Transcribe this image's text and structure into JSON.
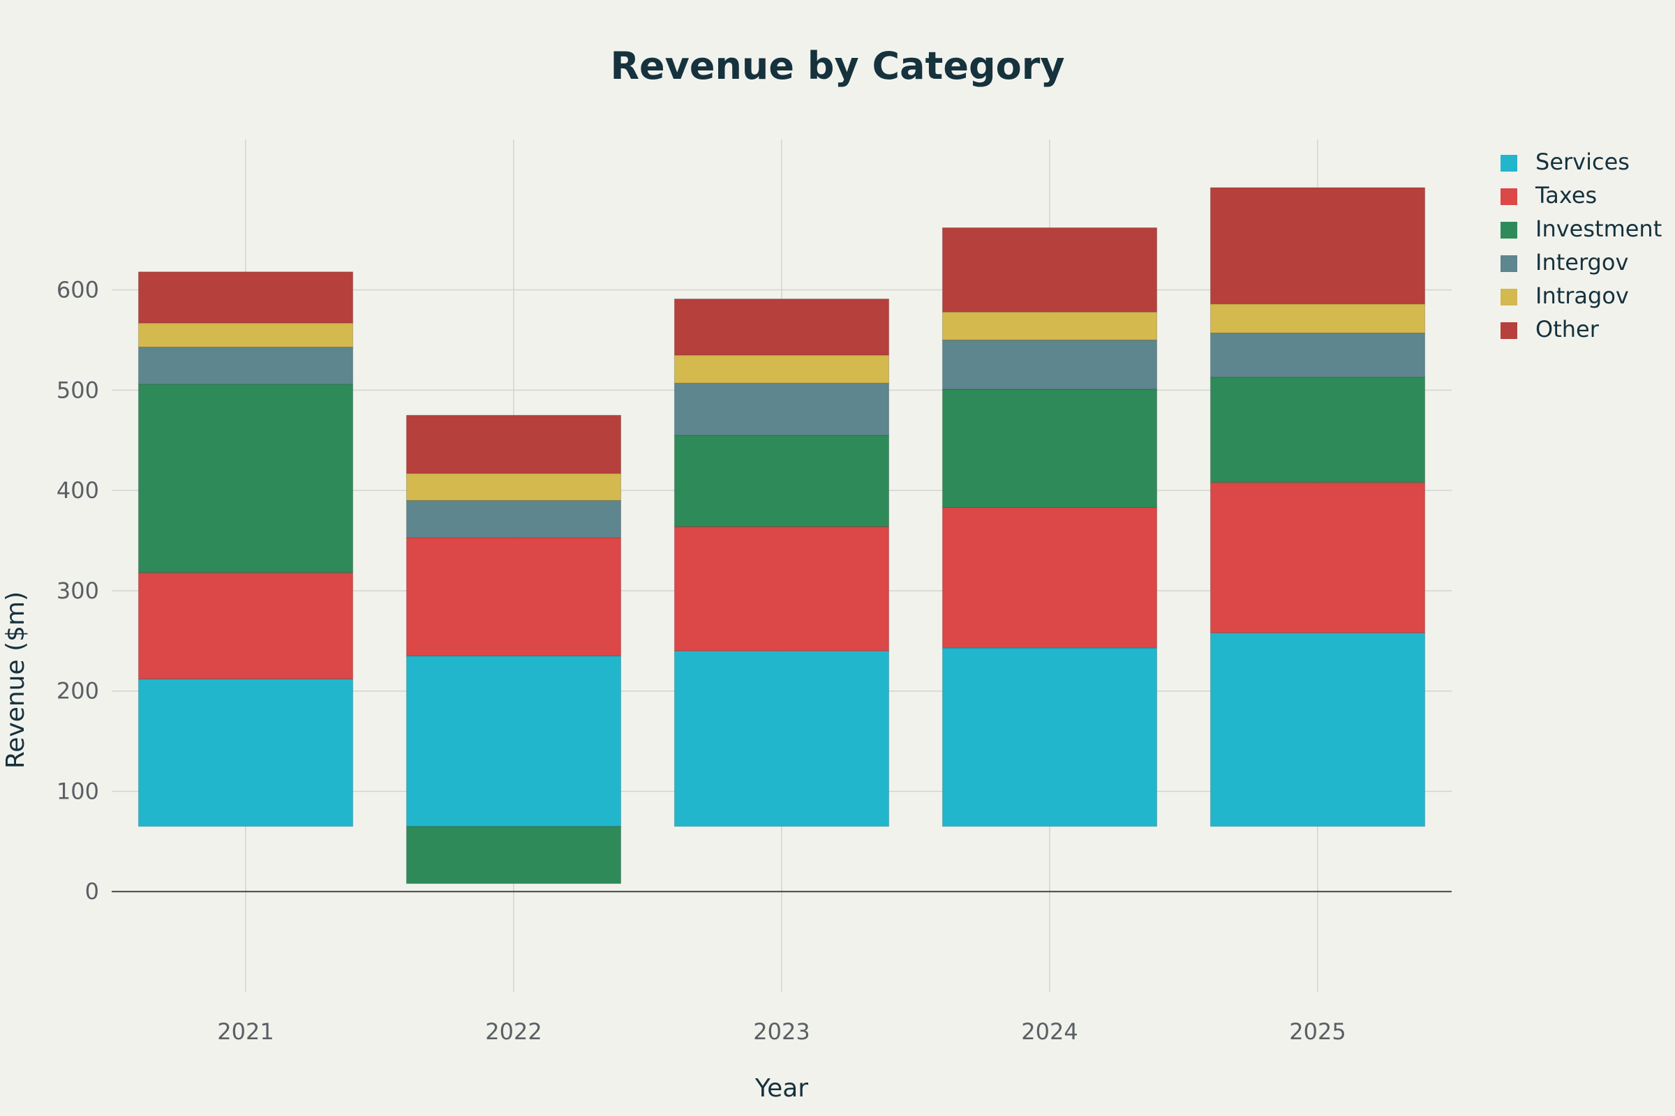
{
  "chart_data": {
    "type": "bar",
    "stacked": true,
    "title": "Revenue by Category",
    "xlabel": "Year",
    "ylabel": "Revenue ($m)",
    "categories": [
      "2021",
      "2022",
      "2023",
      "2024",
      "2025"
    ],
    "ylim": [
      -100,
      750
    ],
    "yticks": [
      0,
      100,
      200,
      300,
      400,
      500,
      600
    ],
    "base": 65,
    "grid": true,
    "legend_position": "right",
    "series": [
      {
        "name": "Services",
        "color": "#21b6cc",
        "values": [
          147,
          170,
          175,
          178,
          193
        ]
      },
      {
        "name": "Taxes",
        "color": "#dc4747",
        "values": [
          106,
          118,
          124,
          140,
          150
        ]
      },
      {
        "name": "Investment",
        "color": "#2e8b59",
        "values": [
          188,
          -57,
          91,
          118,
          105
        ]
      },
      {
        "name": "Intergov",
        "color": "#5d868e",
        "values": [
          37,
          37,
          52,
          49,
          44
        ]
      },
      {
        "name": "Intragov",
        "color": "#d3b94e",
        "values": [
          24,
          27,
          28,
          28,
          29
        ]
      },
      {
        "name": "Other",
        "color": "#b5403c",
        "values": [
          51,
          58,
          56,
          84,
          116
        ]
      }
    ]
  }
}
